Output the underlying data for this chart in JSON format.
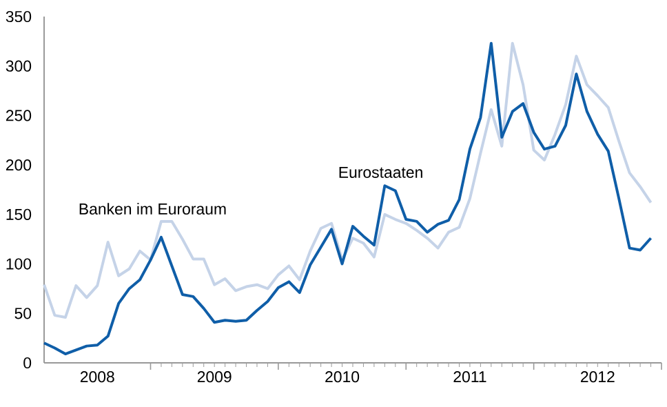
{
  "chart_data": {
    "type": "line",
    "x": [
      "2008-03",
      "2008-04",
      "2008-05",
      "2008-06",
      "2008-07",
      "2008-08",
      "2008-09",
      "2008-10",
      "2008-11",
      "2008-12",
      "2009-01",
      "2009-02",
      "2009-03",
      "2009-04",
      "2009-05",
      "2009-06",
      "2009-07",
      "2009-08",
      "2009-09",
      "2009-10",
      "2009-11",
      "2009-12",
      "2010-01",
      "2010-02",
      "2010-03",
      "2010-04",
      "2010-05",
      "2010-06",
      "2010-07",
      "2010-08",
      "2010-09",
      "2010-10",
      "2010-11",
      "2010-12",
      "2011-01",
      "2011-02",
      "2011-03",
      "2011-04",
      "2011-05",
      "2011-06",
      "2011-07",
      "2011-08",
      "2011-09",
      "2011-10",
      "2011-11",
      "2011-12",
      "2012-01",
      "2012-02",
      "2012-03",
      "2012-04",
      "2012-05",
      "2012-06",
      "2012-07",
      "2012-08",
      "2012-09",
      "2012-10",
      "2012-11",
      "2012-12"
    ],
    "series": [
      {
        "name": "Banken im Euroraum",
        "color": "#c5d3e8",
        "values": [
          79,
          48,
          46,
          78,
          66,
          78,
          122,
          88,
          95,
          113,
          104,
          143,
          143,
          125,
          105,
          105,
          79,
          85,
          73,
          77,
          79,
          75,
          89,
          98,
          84,
          113,
          136,
          141,
          104,
          126,
          121,
          107,
          150,
          145,
          141,
          134,
          126,
          116,
          132,
          137,
          166,
          212,
          256,
          219,
          323,
          281,
          215,
          205,
          231,
          261,
          310,
          281,
          270,
          258,
          224,
          192,
          178,
          162
        ]
      },
      {
        "name": "Eurostaaten",
        "color": "#0f5ea8",
        "values": [
          20,
          15,
          9,
          13,
          17,
          18,
          27,
          60,
          75,
          84,
          104,
          127,
          98,
          69,
          67,
          55,
          41,
          43,
          42,
          43,
          53,
          62,
          76,
          82,
          71,
          99,
          117,
          135,
          100,
          138,
          128,
          119,
          179,
          174,
          145,
          143,
          132,
          140,
          144,
          165,
          216,
          248,
          323,
          228,
          254,
          262,
          233,
          216,
          219,
          240,
          292,
          254,
          231,
          214,
          166,
          116,
          114,
          126
        ]
      }
    ],
    "xlim": [
      "2008-03",
      "2013-01"
    ],
    "xticks": [
      {
        "value": "2009-01",
        "label": null
      },
      {
        "value": "2010-01",
        "label": null
      },
      {
        "value": "2011-01",
        "label": null
      },
      {
        "value": "2012-01",
        "label": null
      },
      {
        "value": "2013-01",
        "label": null
      },
      {
        "value": "2008-08",
        "label": "2008"
      },
      {
        "value": "2009-07",
        "label": "2009"
      },
      {
        "value": "2010-07",
        "label": "2010"
      },
      {
        "value": "2011-07",
        "label": "2011"
      },
      {
        "value": "2012-07",
        "label": "2012"
      }
    ],
    "ylim": [
      0,
      350
    ],
    "yticks": [
      0,
      50,
      100,
      150,
      200,
      250,
      300,
      350
    ],
    "grid": false,
    "marker": "none",
    "line_style": "solid"
  }
}
